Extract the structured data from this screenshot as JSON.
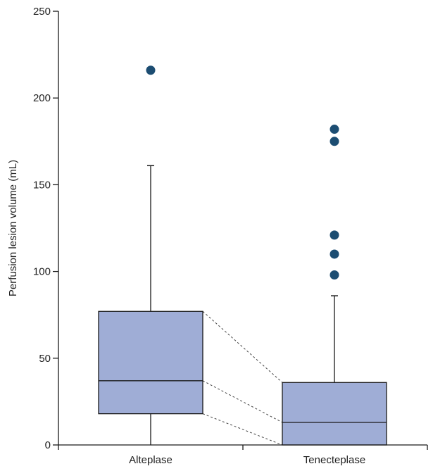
{
  "chart_data": {
    "type": "boxplot",
    "title": "",
    "xlabel": "",
    "ylabel": "Perfusion lesion volume (mL)",
    "ylim": [
      0,
      250
    ],
    "yticks": [
      0,
      50,
      100,
      150,
      200,
      250
    ],
    "grid": false,
    "legend": "none",
    "colors": {
      "box_fill": "#9fadd6",
      "box_stroke": "#1a1a1a",
      "outlier": "#1c4d72",
      "axis": "#1a1a1a",
      "connector": "#444444"
    },
    "categories": [
      "Alteplase",
      "Tenecteplase"
    ],
    "boxes": [
      {
        "name": "Alteplase",
        "whisker_low": 0,
        "q1": 18,
        "median": 37,
        "q3": 77,
        "whisker_high": 161,
        "outliers": [
          216
        ]
      },
      {
        "name": "Tenecteplase",
        "whisker_low": 0,
        "q1": 0,
        "median": 13,
        "q3": 36,
        "whisker_high": 86,
        "outliers": [
          98,
          110,
          121,
          175,
          182
        ]
      }
    ],
    "connectors": [
      {
        "from": "Alteplase",
        "to": "Tenecteplase",
        "stat": "q3"
      },
      {
        "from": "Alteplase",
        "to": "Tenecteplase",
        "stat": "median"
      },
      {
        "from": "Alteplase",
        "to": "Tenecteplase",
        "stat": "q1"
      }
    ]
  }
}
